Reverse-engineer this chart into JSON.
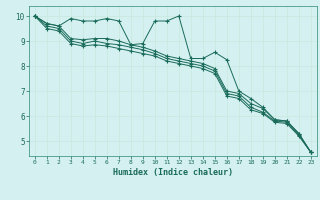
{
  "xlabel": "Humidex (Indice chaleur)",
  "ylabel": "",
  "bg_color": "#d4f0f0",
  "line_color": "#1a6b5a",
  "grid_color": "#c8e8e0",
  "axis_color": "#2a8a70",
  "xlim": [
    -0.5,
    23.5
  ],
  "ylim": [
    4.4,
    10.4
  ],
  "xticks": [
    0,
    1,
    2,
    3,
    4,
    5,
    6,
    7,
    8,
    9,
    10,
    11,
    12,
    13,
    14,
    15,
    16,
    17,
    18,
    19,
    20,
    21,
    22,
    23
  ],
  "yticks": [
    5,
    6,
    7,
    8,
    9,
    10
  ],
  "series": [
    [
      10.0,
      9.7,
      9.6,
      9.9,
      9.8,
      9.8,
      9.9,
      9.8,
      8.85,
      8.9,
      9.8,
      9.8,
      10.0,
      8.3,
      8.3,
      8.55,
      8.25,
      7.0,
      6.7,
      6.35,
      5.85,
      5.8,
      5.3,
      4.55
    ],
    [
      10.0,
      9.7,
      9.6,
      9.1,
      9.05,
      9.1,
      9.1,
      9.0,
      8.85,
      8.75,
      8.6,
      8.4,
      8.3,
      8.2,
      8.1,
      7.9,
      7.0,
      6.9,
      6.5,
      6.3,
      5.85,
      5.8,
      5.3,
      4.55
    ],
    [
      10.0,
      9.6,
      9.5,
      9.0,
      8.9,
      9.0,
      8.9,
      8.85,
      8.75,
      8.65,
      8.5,
      8.3,
      8.2,
      8.1,
      8.0,
      7.8,
      6.9,
      6.8,
      6.35,
      6.15,
      5.8,
      5.75,
      5.25,
      4.55
    ],
    [
      10.0,
      9.5,
      9.4,
      8.9,
      8.8,
      8.85,
      8.8,
      8.7,
      8.6,
      8.5,
      8.4,
      8.2,
      8.1,
      8.0,
      7.9,
      7.7,
      6.8,
      6.7,
      6.25,
      6.1,
      5.75,
      5.7,
      5.2,
      4.55
    ]
  ]
}
